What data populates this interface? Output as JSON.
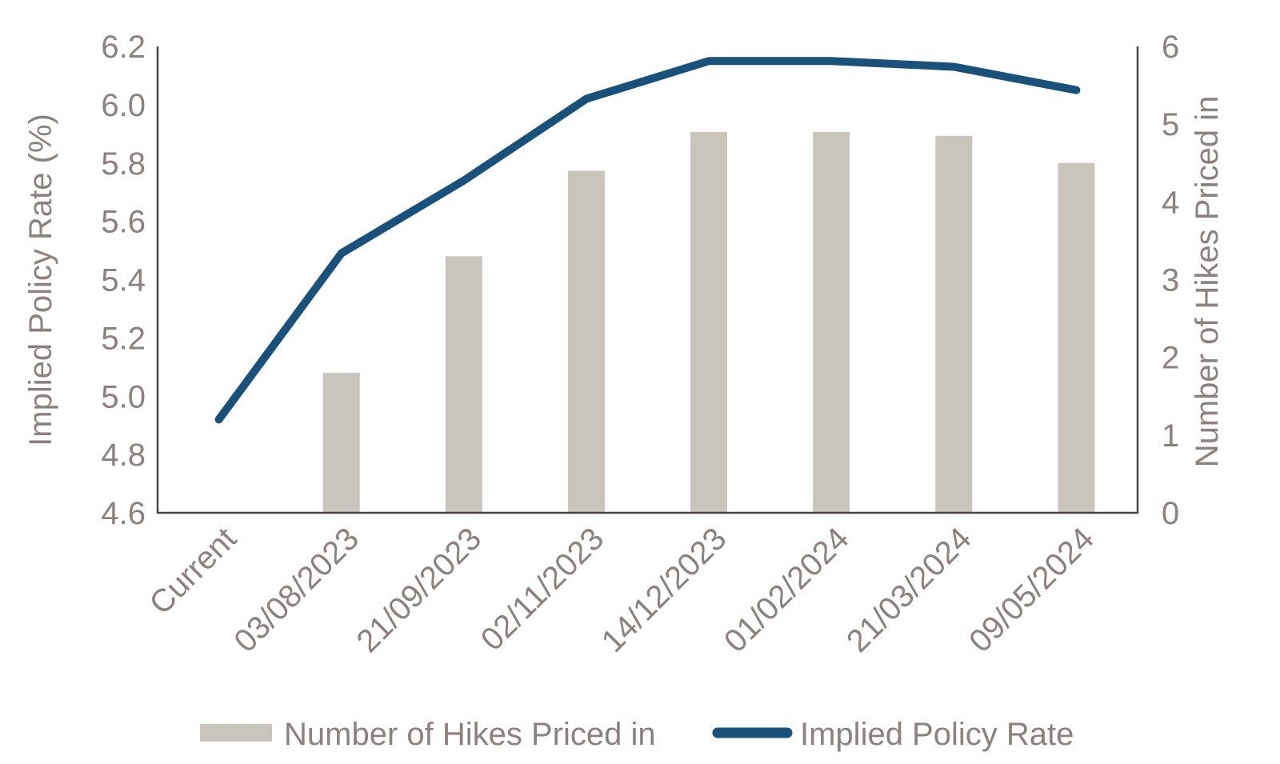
{
  "chart_data": {
    "type": "combo-bar-line-dual-axis",
    "categories": [
      "Current",
      "03/08/2023",
      "21/09/2023",
      "02/11/2023",
      "14/12/2023",
      "01/02/2024",
      "21/03/2024",
      "09/05/2024"
    ],
    "series": [
      {
        "name": "Number of Hikes Priced in",
        "type": "bar",
        "axis": "right",
        "color": "#c9c5bd",
        "values": [
          null,
          1.8,
          3.3,
          4.4,
          4.9,
          4.9,
          4.85,
          4.5
        ]
      },
      {
        "name": "Implied Policy Rate",
        "type": "line",
        "axis": "left",
        "color": "#17517c",
        "values": [
          4.92,
          5.49,
          5.74,
          6.02,
          6.15,
          6.15,
          6.13,
          6.05
        ]
      }
    ],
    "left_axis": {
      "label": "Implied Policy Rate (%)",
      "min": 4.6,
      "max": 6.2,
      "step": 0.2,
      "tick_labels": [
        "4.6",
        "4.8",
        "5.0",
        "5.2",
        "5.4",
        "5.6",
        "5.8",
        "6.0",
        "6.2"
      ]
    },
    "right_axis": {
      "label": "Number of Hikes Priced in",
      "min": 0,
      "max": 6,
      "step": 1,
      "tick_labels": [
        "0",
        "1",
        "2",
        "3",
        "4",
        "5",
        "6"
      ]
    },
    "legend": {
      "position": "bottom",
      "items": [
        "Number of Hikes Priced in",
        "Implied Policy Rate"
      ]
    },
    "grid": false,
    "colors": {
      "text": "#8b817e",
      "axis": "#4a4542",
      "background": "#ffffff"
    }
  }
}
